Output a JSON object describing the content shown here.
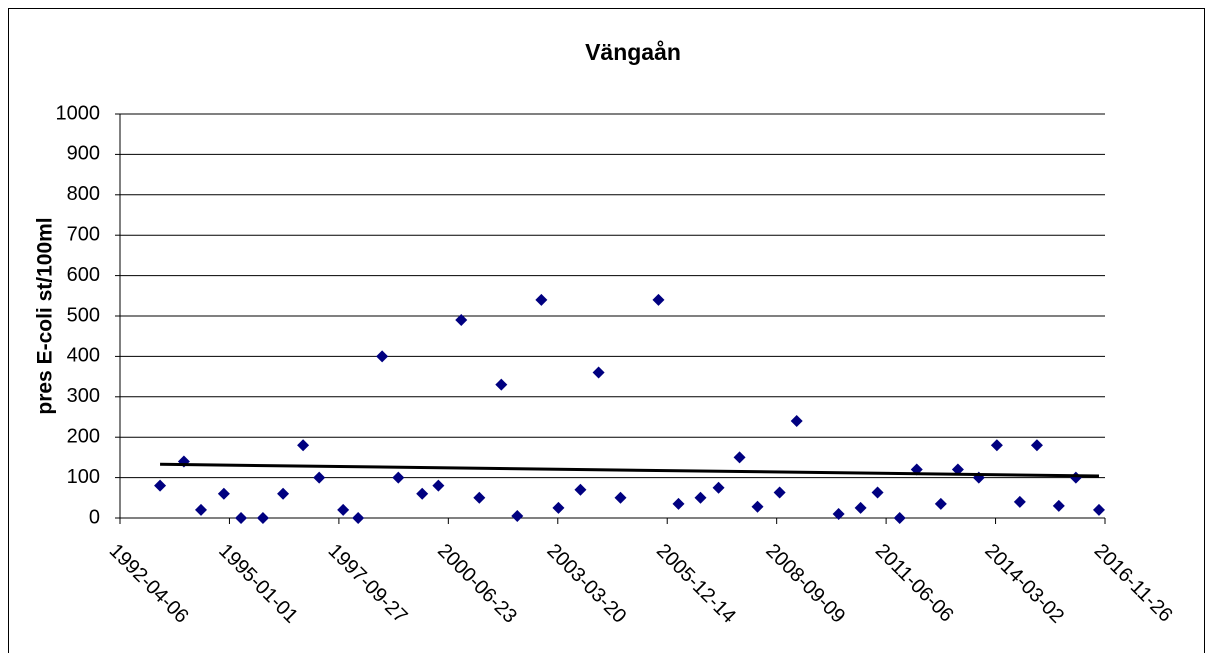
{
  "chart_data": {
    "type": "scatter",
    "title": "Vängaån",
    "y_label": "pres E-coli st/100ml",
    "x": [
      "1993-04-07",
      "1993-11-11",
      "1994-04-16",
      "1994-11-11",
      "1995-04-17",
      "1995-11-03",
      "1996-05-05",
      "1996-11-04",
      "1997-03-31",
      "1997-11-05",
      "1998-03-22",
      "1998-10-27",
      "1999-03-24",
      "1999-10-28",
      "2000-03-24",
      "2000-10-19",
      "2001-04-02",
      "2001-10-20",
      "2002-03-15",
      "2002-10-21",
      "2003-03-26",
      "2003-10-13",
      "2004-03-27",
      "2004-10-13",
      "2005-09-25",
      "2006-03-27",
      "2006-10-14",
      "2007-03-28",
      "2007-10-06",
      "2008-03-18",
      "2008-10-06",
      "2009-03-11",
      "2010-03-29",
      "2010-10-16",
      "2011-03-20",
      "2011-10-08",
      "2012-03-12",
      "2012-10-18",
      "2013-03-23",
      "2013-09-30",
      "2014-03-14",
      "2014-10-10",
      "2015-03-15",
      "2015-10-01",
      "2016-03-05",
      "2016-10-02"
    ],
    "values": [
      80,
      140,
      20,
      60,
      0,
      0,
      60,
      180,
      100,
      20,
      0,
      400,
      100,
      60,
      80,
      490,
      50,
      330,
      5,
      540,
      25,
      70,
      360,
      50,
      540,
      35,
      50,
      75,
      150,
      28,
      63,
      240,
      10,
      25,
      63,
      0,
      120,
      35,
      120,
      100,
      180,
      40,
      180,
      30,
      100,
      20
    ],
    "color": "#000080",
    "trendline": {
      "x": [
        "1993-04-07",
        "2016-10-02"
      ],
      "values": [
        133,
        104
      ],
      "color": "#000000"
    },
    "xlim": [
      "1992-04-06",
      "2016-11-26"
    ],
    "xticks": [
      "1992-04-06",
      "1995-01-01",
      "1997-09-27",
      "2000-06-23",
      "2003-03-20",
      "2005-12-14",
      "2008-09-09",
      "2011-06-06",
      "2014-03-02",
      "2016-11-26"
    ],
    "ylim": [
      0,
      1000
    ],
    "yticks": [
      0,
      100,
      200,
      300,
      400,
      500,
      600,
      700,
      800,
      900,
      1000
    ],
    "grid": true
  }
}
